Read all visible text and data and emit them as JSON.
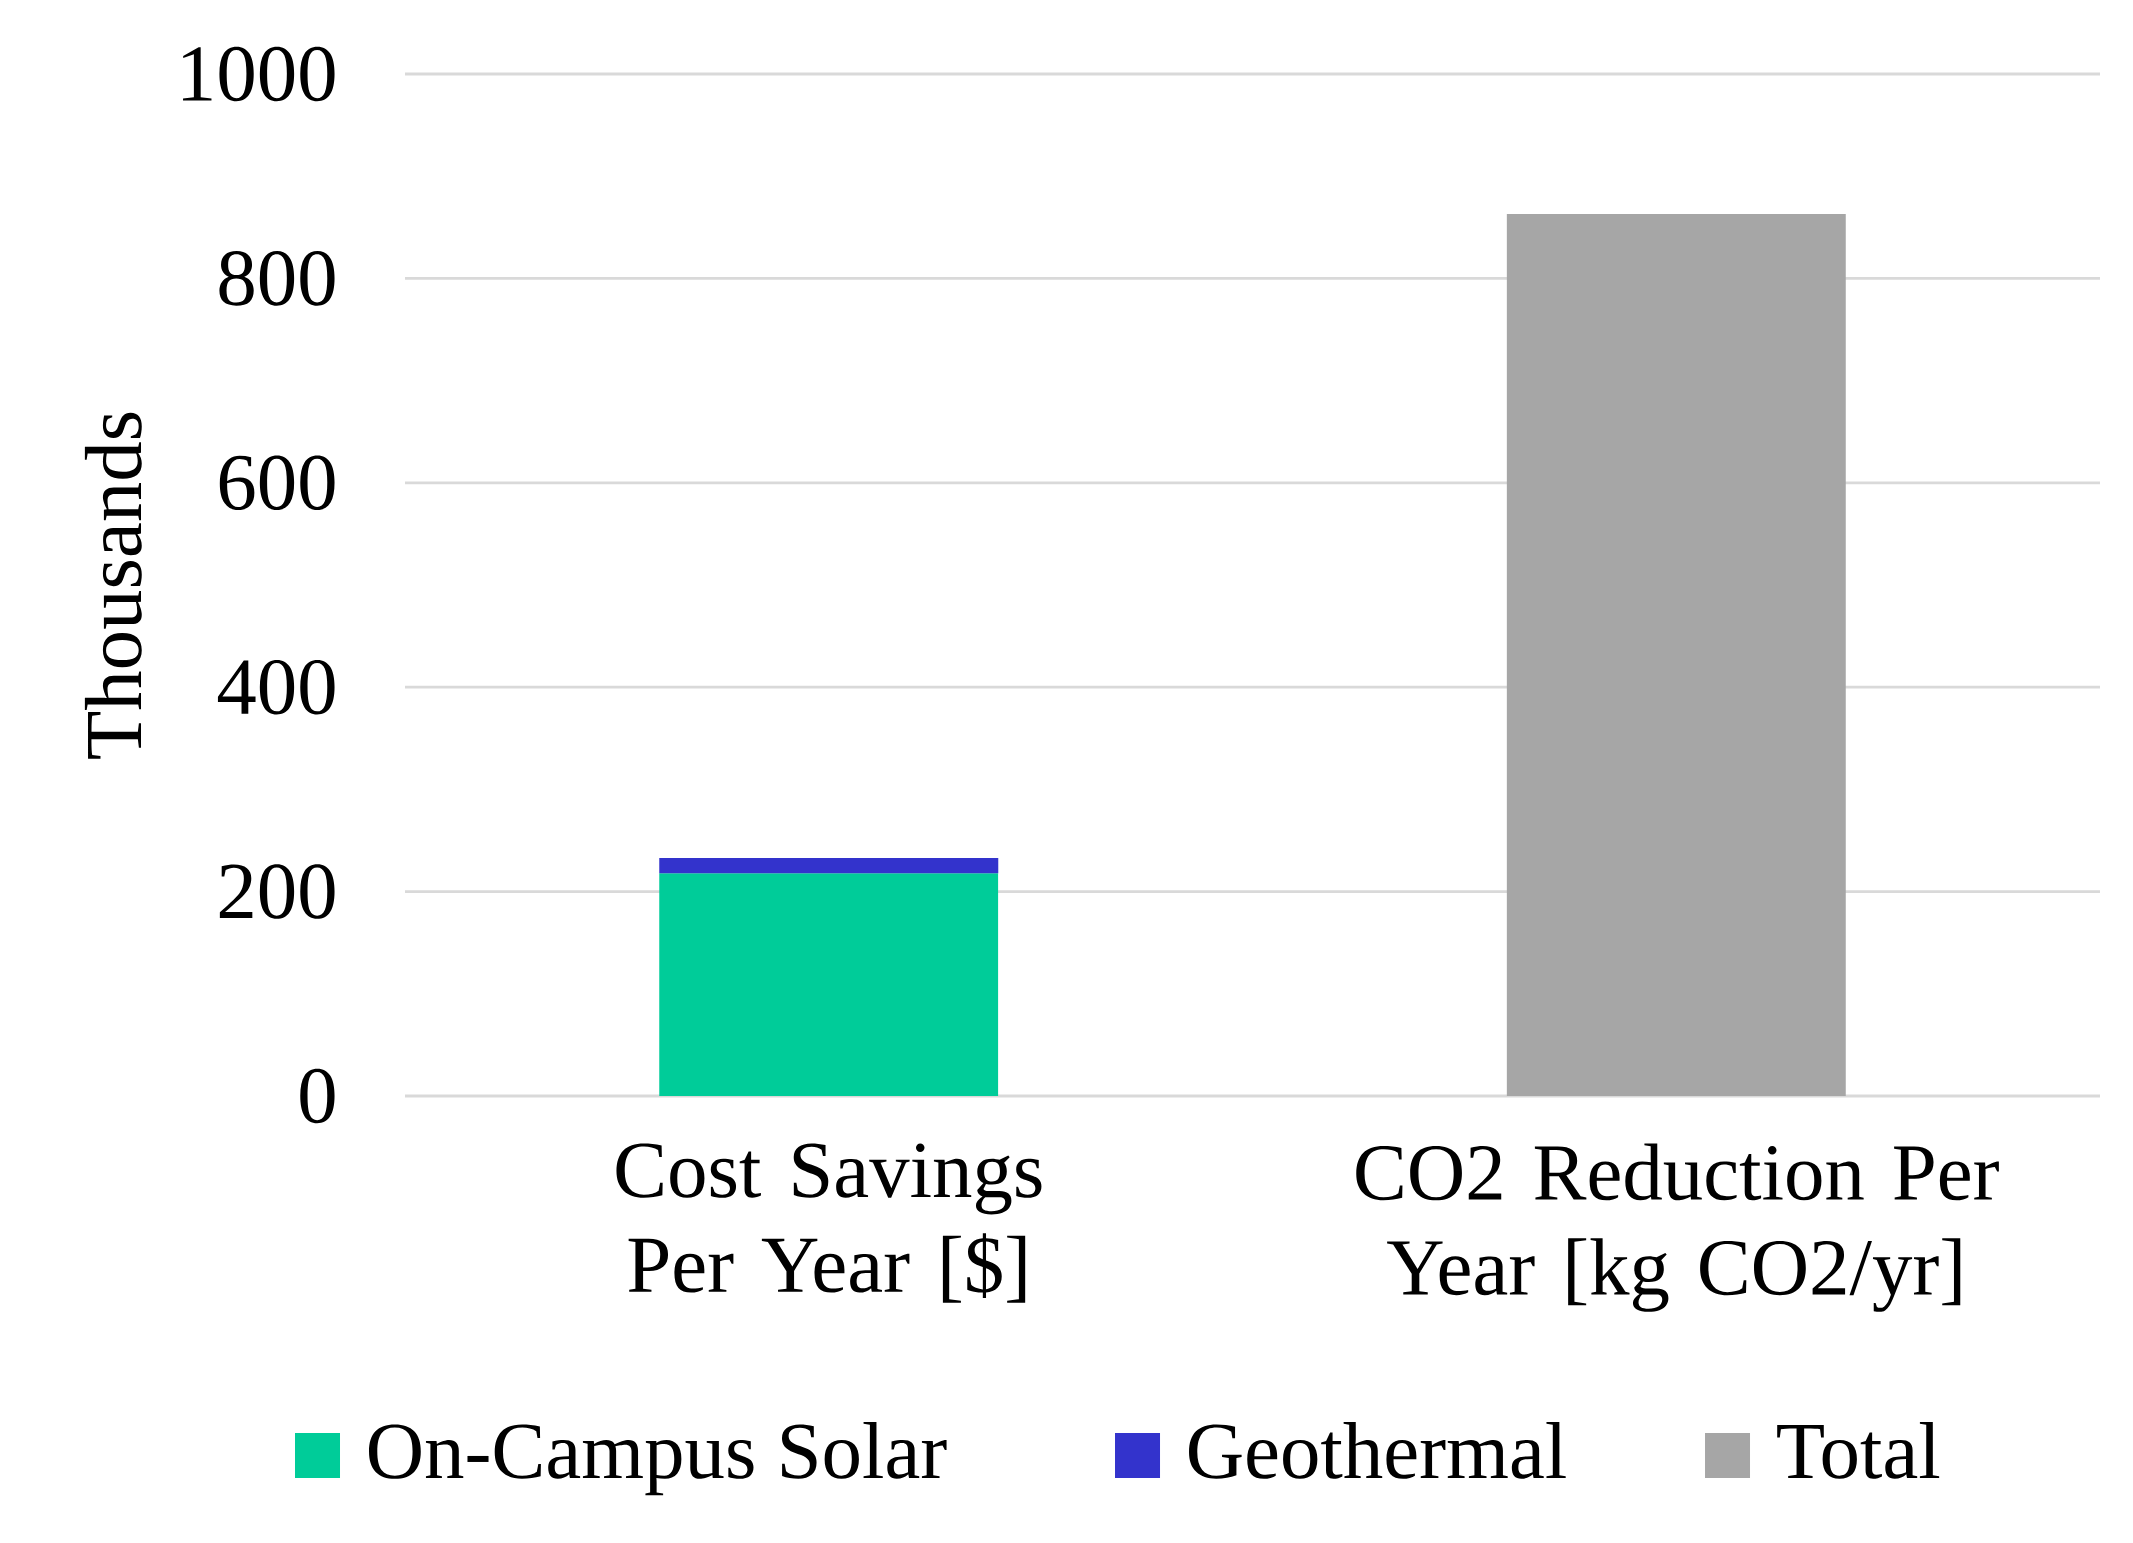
{
  "chart_data": {
    "type": "bar",
    "stacked": true,
    "ylabel": "Thousands",
    "categories": [
      "Cost Savings Per Year [$]",
      "CO2 Reduction Per Year [kg CO2/yr]"
    ],
    "series": [
      {
        "name": "On-Campus Solar",
        "color": "#00cc99",
        "values": [
          218,
          null
        ]
      },
      {
        "name": "Geothermal",
        "color": "#3333cc",
        "values": [
          15,
          null
        ]
      },
      {
        "name": "Total",
        "color": "#a6a6a6",
        "values": [
          null,
          863
        ]
      }
    ],
    "ylim": [
      0,
      1000
    ],
    "yticks": [
      0,
      200,
      400,
      600,
      800,
      1000
    ],
    "grid": "y",
    "legend": "bottom"
  }
}
